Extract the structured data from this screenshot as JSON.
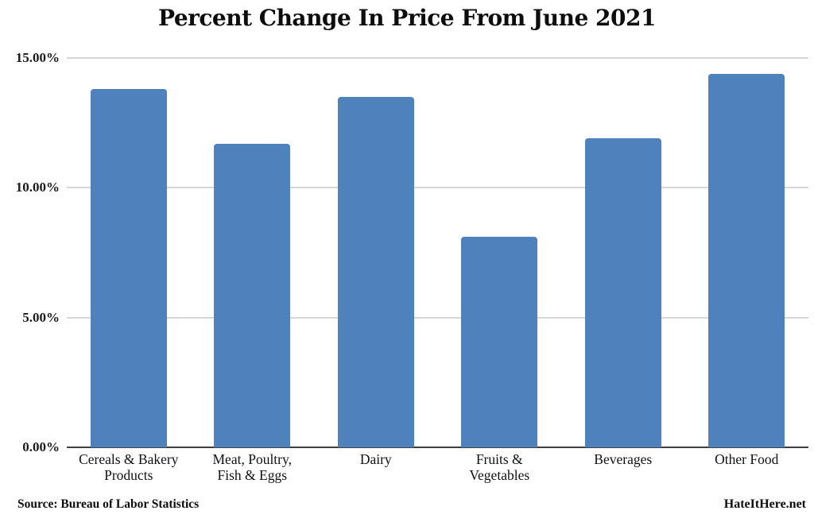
{
  "chart_data": {
    "type": "bar",
    "title": "Percent Change In Price From June 2021",
    "categories": [
      "Cereals & Bakery\nProducts",
      "Meat, Poultry,\nFish & Eggs",
      "Dairy",
      "Fruits &\nVegetables",
      "Beverages",
      "Other Food"
    ],
    "values": [
      13.8,
      11.7,
      13.5,
      8.1,
      11.9,
      14.4
    ],
    "unit": "%",
    "xlabel": "",
    "ylabel": "",
    "ylim": [
      0,
      15
    ],
    "yticks": [
      {
        "value": 0,
        "label": "0.00%"
      },
      {
        "value": 5,
        "label": "5.00%"
      },
      {
        "value": 10,
        "label": "10.00%"
      },
      {
        "value": 15,
        "label": "15.00%"
      }
    ],
    "grid": true,
    "legend": false,
    "bar_color": "#4F81BD",
    "grid_color": "#d6d6d6",
    "axis_color": "#3f3f3f",
    "background_color": "#ffffff",
    "source": "Source: Bureau of Labor Statistics",
    "watermark": "HateItHere.net"
  }
}
